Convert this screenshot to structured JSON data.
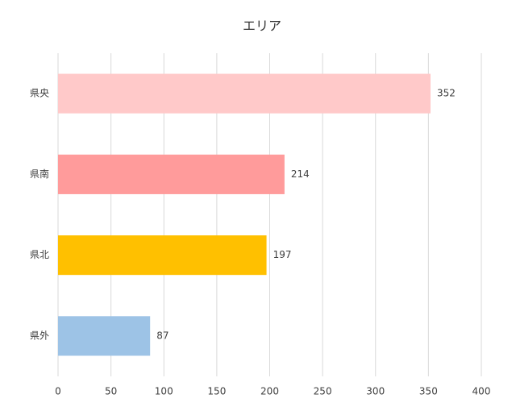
{
  "chart_data": {
    "type": "bar",
    "orientation": "horizontal",
    "title": "エリア",
    "categories": [
      "県央",
      "県南",
      "県北",
      "県外"
    ],
    "values": [
      352,
      214,
      197,
      87
    ],
    "colors": [
      "#ffc9c9",
      "#ff9b9b",
      "#ffc000",
      "#9dc3e6"
    ],
    "xlim": [
      0,
      400
    ],
    "xticks": [
      0,
      50,
      100,
      150,
      200,
      250,
      300,
      350,
      400
    ],
    "grid": true
  }
}
